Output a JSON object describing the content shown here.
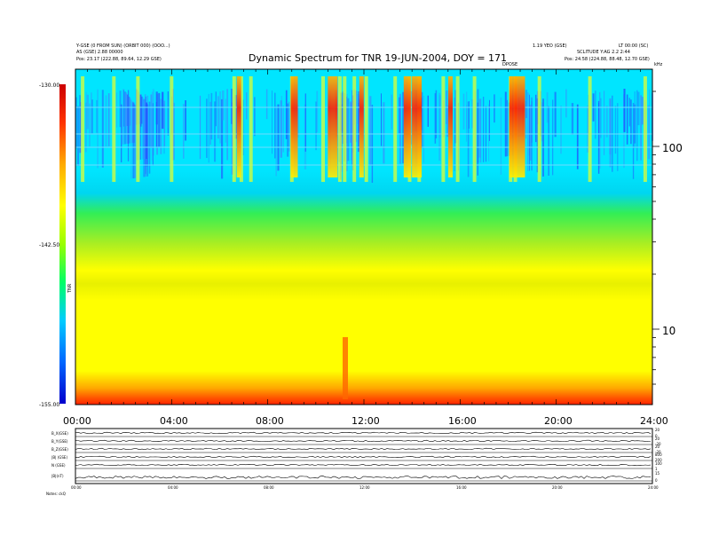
{
  "chart_data": {
    "type": "heatmap",
    "title": "Dynamic Spectrum for TNR 19-JUN-2004, DOY = 171",
    "xlabel": "",
    "ylabel": "kHz",
    "x_range_hours": [
      0,
      24
    ],
    "x_ticks": [
      "00:00",
      "04:00",
      "08:00",
      "12:00",
      "16:00",
      "20:00",
      "24:00"
    ],
    "y_scale": "log",
    "y_ticks": [
      {
        "value": 100,
        "label": "100"
      },
      {
        "value": 10,
        "label": "10"
      }
    ],
    "colorbar": {
      "label": "TNR",
      "ticks": [
        "-130.00",
        "-142.50",
        "-155.00"
      ],
      "colors": [
        "#0000cc",
        "#0066ff",
        "#00ccff",
        "#00ff66",
        "#99ff00",
        "#ffff00",
        "#ffaa00",
        "#ff3300",
        "#cc0000"
      ]
    },
    "header_left": [
      "Y-GSE (0 FROM SUN) (ORBIT 000) (OOO...)",
      "AS (GSE) 2.88 00000",
      "Pos: 23.17 (222.88, 89.64, 12.29 GSE)"
    ],
    "header_right": [
      "1.19 YEO (GSE)",
      "LT 00:00 (SC)",
      "SCLITUDE Y:AG 2.2 2:44",
      "Pos: 24.58 (224.88, 88.48, 12.70 GSE)"
    ],
    "event_label": "DPOSE",
    "vband_hours": [
      0.3,
      1.6,
      2.6,
      4.0,
      6.6,
      6.9,
      7.3,
      9.0,
      10.3,
      11.0,
      11.2,
      11.6,
      12.1,
      13.3,
      13.9,
      14.3,
      15.3,
      15.9,
      16.6,
      18.1,
      18.3,
      19.3,
      21.4,
      23.7
    ],
    "hot_hours": [
      6.8,
      9.1,
      10.7,
      11.9,
      13.8,
      14.2,
      15.6,
      18.2,
      18.5
    ],
    "bottom_panel": {
      "row_labels": [
        "B_X(GSE)",
        "B_Y(GSE)",
        "B_Z(GSE)",
        "|B| (GSE)",
        "N (GSE)",
        "|B|(nT)"
      ],
      "right_ticks": [
        [
          "20",
          "0"
        ],
        [
          "20",
          "-20"
        ],
        [
          "20",
          "-20"
        ],
        [
          "800",
          "200"
        ],
        [
          "100",
          "1"
        ],
        [
          "15",
          "0"
        ]
      ],
      "x_ticks": [
        "00:00",
        "04:00",
        "08:00",
        "12:00",
        "16:00",
        "20:00",
        "24:00"
      ],
      "footer": "Notes:   ckQ"
    }
  }
}
